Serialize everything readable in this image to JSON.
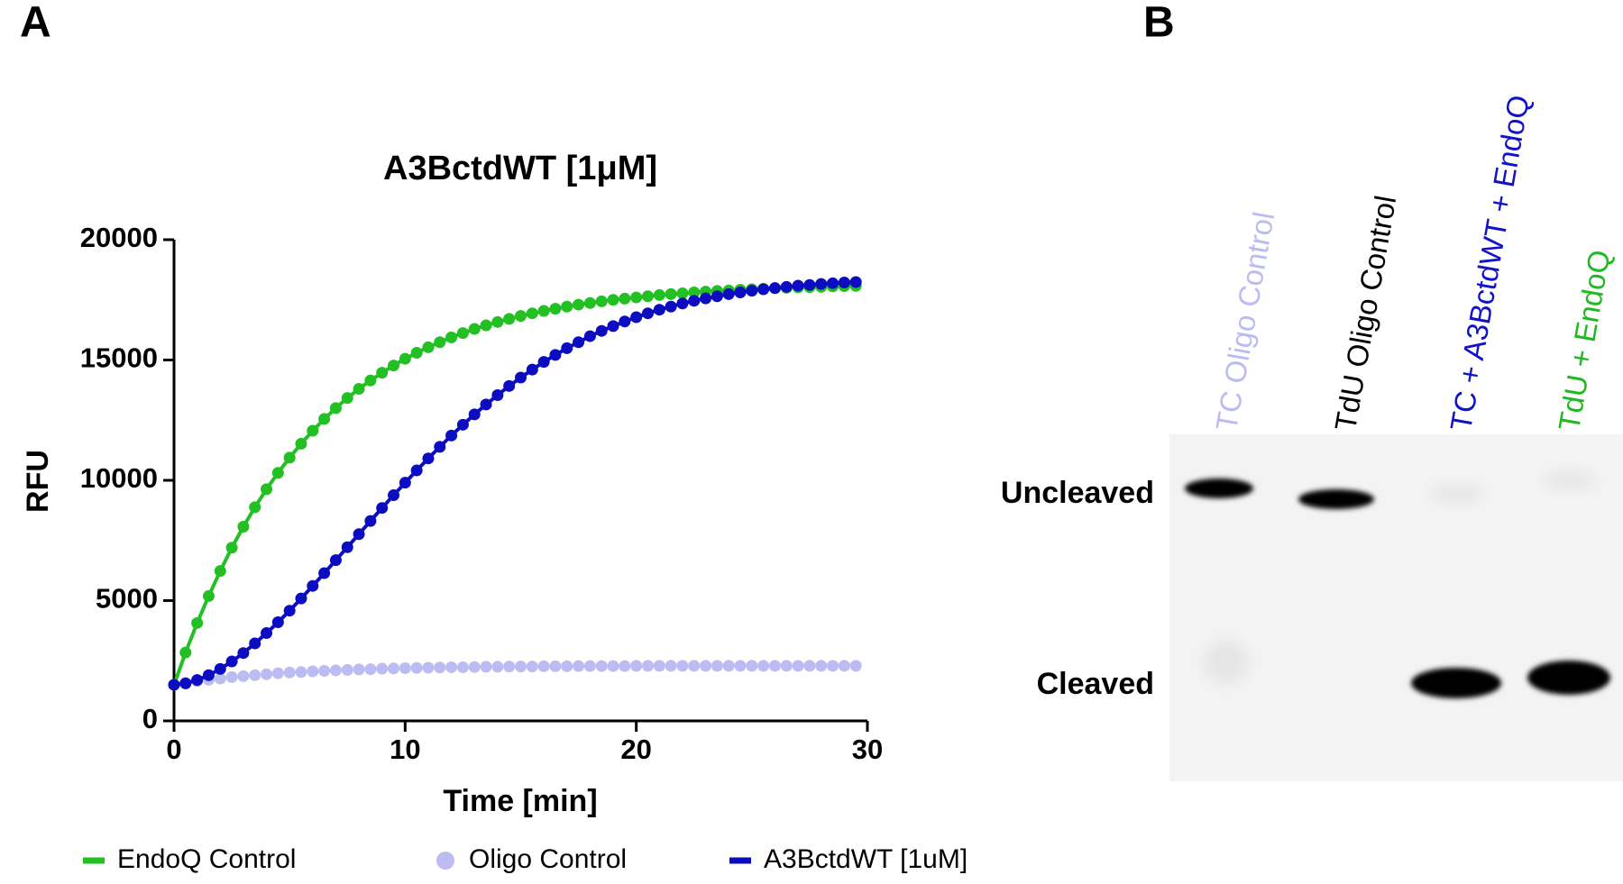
{
  "panels": [
    "A",
    "B"
  ],
  "chart_data": {
    "type": "line",
    "title": "A3BctdWT [1μM]",
    "xlabel": "Time [min]",
    "ylabel": "RFU",
    "x": [
      0,
      0.5,
      1,
      1.5,
      2,
      2.5,
      3,
      3.5,
      4,
      4.5,
      5,
      5.5,
      6,
      6.5,
      7,
      7.5,
      8,
      8.5,
      9,
      9.5,
      10,
      10.5,
      11,
      11.5,
      12,
      12.5,
      13,
      13.5,
      14,
      14.5,
      15,
      15.5,
      16,
      16.5,
      17,
      17.5,
      18,
      18.5,
      19,
      19.5,
      20,
      20.5,
      21,
      21.5,
      22,
      22.5,
      23,
      23.5,
      24,
      24.5,
      25,
      25.5,
      26,
      26.5,
      27,
      27.5,
      28,
      28.5,
      29,
      29.5
    ],
    "series": [
      {
        "name": "EndoQ Control",
        "color": "#22c022",
        "line": true,
        "values": [
          1500,
          2840,
          4070,
          5190,
          6230,
          7200,
          8070,
          8880,
          9630,
          10310,
          10940,
          11520,
          12060,
          12550,
          13000,
          13420,
          13800,
          14150,
          14470,
          14770,
          15050,
          15300,
          15530,
          15740,
          15940,
          16120,
          16290,
          16440,
          16580,
          16710,
          16830,
          16940,
          17040,
          17130,
          17220,
          17300,
          17370,
          17440,
          17500,
          17550,
          17600,
          17650,
          17700,
          17740,
          17770,
          17810,
          17840,
          17870,
          17890,
          17920,
          17940,
          17960,
          17980,
          18000,
          18020,
          18030,
          18040,
          18060,
          18070,
          18080
        ]
      },
      {
        "name": "Oligo Control",
        "color": "#bcbcf2",
        "line": false,
        "values": [
          1500,
          1580,
          1650,
          1710,
          1760,
          1820,
          1860,
          1900,
          1940,
          1980,
          2010,
          2030,
          2060,
          2080,
          2100,
          2120,
          2140,
          2150,
          2170,
          2180,
          2190,
          2200,
          2210,
          2220,
          2230,
          2230,
          2240,
          2250,
          2250,
          2260,
          2260,
          2260,
          2270,
          2270,
          2270,
          2280,
          2280,
          2280,
          2280,
          2280,
          2290,
          2290,
          2290,
          2290,
          2290,
          2290,
          2290,
          2290,
          2290,
          2290,
          2290,
          2290,
          2290,
          2290,
          2290,
          2290,
          2290,
          2290,
          2290,
          2290
        ]
      },
      {
        "name": "A3BctdWT [1uM]",
        "color": "#0c0cc0",
        "line": true,
        "values": [
          1500,
          1560,
          1700,
          1900,
          2160,
          2470,
          2820,
          3220,
          3650,
          4100,
          4580,
          5090,
          5610,
          6140,
          6680,
          7220,
          7760,
          8310,
          8850,
          9380,
          9900,
          10410,
          10910,
          11390,
          11860,
          12310,
          12740,
          13150,
          13540,
          13920,
          14270,
          14600,
          14920,
          15210,
          15490,
          15740,
          15990,
          16210,
          16410,
          16600,
          16780,
          16940,
          17090,
          17220,
          17350,
          17460,
          17560,
          17650,
          17740,
          17810,
          17880,
          17940,
          17990,
          18040,
          18090,
          18120,
          18160,
          18190,
          18220,
          18240
        ]
      }
    ],
    "xlim": [
      0,
      30
    ],
    "xticks": [
      0,
      10,
      20,
      30
    ],
    "ylim": [
      0,
      20000
    ],
    "yticks": [
      0,
      5000,
      10000,
      15000,
      20000
    ]
  },
  "gel": {
    "lanes": [
      {
        "label": "TC Oligo Control",
        "color": "#bcbcf2"
      },
      {
        "label": "TdU Oligo Control",
        "color": "#000000"
      },
      {
        "label": "TC + A3BctdWT + EndoQ",
        "color": "#1212c8"
      },
      {
        "label": "TdU + EndoQ",
        "color": "#22b822"
      }
    ],
    "bands": [
      "Uncleaved",
      "Cleaved"
    ]
  }
}
